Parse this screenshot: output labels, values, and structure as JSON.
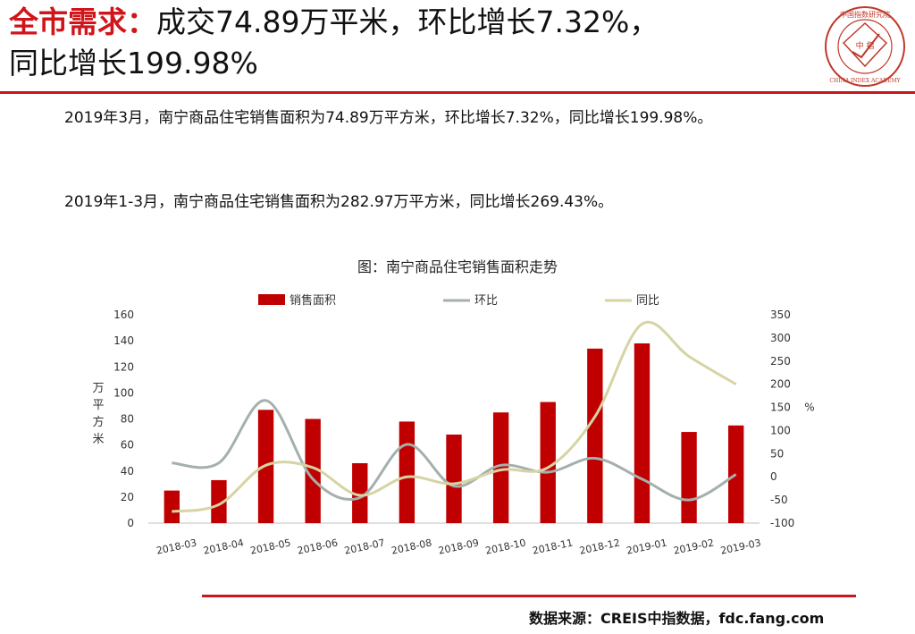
{
  "headline": {
    "accent": "全市需求：",
    "line1_rest": "成交74.89万平米，环比增长7.32%，",
    "line2": "同比增长199.98%"
  },
  "logo": {
    "cn_text": "中国指数研究院",
    "mark": "中 指",
    "en_text": "CHINA INDEX ACADEMY",
    "color": "#c0392b"
  },
  "paragraphs": [
    "2019年3月，南宁商品住宅销售面积为74.89万平方米，环比增长7.32%，同比增长199.98%。",
    "2019年1-3月，南宁商品住宅销售面积为282.97万平方米，同比增长269.43%。"
  ],
  "source": "数据来源：CREIS中指数据，fdc.fang.com",
  "colors": {
    "accent": "#d0141a",
    "bar": "#c00000",
    "mom_line": "#a4b0ae",
    "yoy_line": "#d6d4a4"
  },
  "chart_data": {
    "type": "bar",
    "title": "图：南宁商品住宅销售面积走势",
    "categories": [
      "2018-03",
      "2018-04",
      "2018-05",
      "2018-06",
      "2018-07",
      "2018-08",
      "2018-09",
      "2018-10",
      "2018-11",
      "2018-12",
      "2019-01",
      "2019-02",
      "2019-03"
    ],
    "series": [
      {
        "name": "销售面积",
        "type": "bar",
        "axis": "left",
        "values": [
          25,
          33,
          87,
          80,
          46,
          78,
          68,
          85,
          93,
          134,
          138,
          70,
          75
        ]
      },
      {
        "name": "环比",
        "type": "line",
        "axis": "right",
        "values": [
          30,
          30,
          165,
          -5,
          -45,
          70,
          -20,
          25,
          10,
          40,
          -5,
          -50,
          5
        ]
      },
      {
        "name": "同比",
        "type": "line",
        "axis": "right",
        "values": [
          -75,
          -60,
          25,
          20,
          -40,
          0,
          -15,
          15,
          20,
          130,
          330,
          260,
          200
        ]
      }
    ],
    "ylabel_left": "万平方米",
    "ylabel_right": "%",
    "ylim_left": [
      0,
      160
    ],
    "ylim_right": [
      -100,
      350
    ],
    "yticks_left": [
      0,
      20,
      40,
      60,
      80,
      100,
      120,
      140,
      160
    ],
    "yticks_right": [
      -100,
      -50,
      0,
      50,
      100,
      150,
      200,
      250,
      300,
      350
    ],
    "legend_position": "top",
    "grid": false
  }
}
